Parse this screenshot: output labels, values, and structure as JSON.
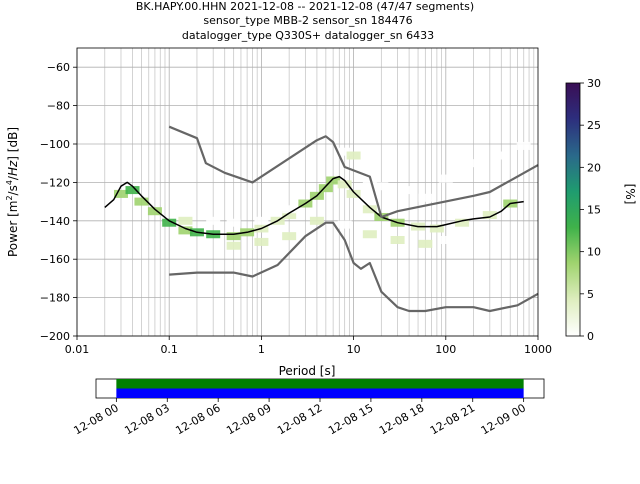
{
  "title_lines": [
    "BK.HAPY.00.HHN   2021-12-08 -- 2021-12-08  (47/47 segments)",
    "sensor_type MBB-2 sensor_sn 184476",
    "datalogger_type Q330S+ datalogger_sn 6433"
  ],
  "chart_data": [
    {
      "type": "heatmap",
      "xlabel": "Period [s]",
      "ylabel": "Power [m2/s4/Hz] [dB]",
      "x_scale": "log",
      "xlim": [
        0.01,
        1000
      ],
      "ylim": [
        -200,
        -50
      ],
      "x_ticks": [
        0.01,
        0.1,
        1,
        10,
        100,
        1000
      ],
      "x_tick_labels": [
        "0.01",
        "0.1",
        "1",
        "10",
        "100",
        "1000"
      ],
      "y_ticks": [
        -200,
        -180,
        -160,
        -140,
        -120,
        -100,
        -80,
        -60
      ],
      "y_tick_labels": [
        "−200",
        "−180",
        "−160",
        "−140",
        "−120",
        "−100",
        "−80",
        "−60"
      ],
      "grid": true,
      "colorbar": {
        "label": "[%]",
        "range": [
          0,
          30
        ],
        "ticks": [
          0,
          5,
          10,
          15,
          20,
          25,
          30
        ],
        "tick_labels": [
          "0",
          "5",
          "10",
          "15",
          "20",
          "25",
          "30"
        ],
        "colors": [
          "#ffffff",
          "#dfeec0",
          "#9fd36e",
          "#3fb24a",
          "#1f9c6f",
          "#2a6a8a",
          "#2d2e7d",
          "#3a0e55"
        ]
      },
      "series": [
        {
          "name": "",
          "color": "#000000",
          "points": [
            [
              0.02,
              -133
            ],
            [
              0.025,
              -129
            ],
            [
              0.03,
              -122
            ],
            [
              0.035,
              -120
            ],
            [
              0.04,
              -122
            ],
            [
              0.05,
              -127
            ],
            [
              0.07,
              -134
            ],
            [
              0.1,
              -140
            ],
            [
              0.15,
              -144
            ],
            [
              0.2,
              -146
            ],
            [
              0.3,
              -147
            ],
            [
              0.5,
              -147
            ],
            [
              0.7,
              -146
            ],
            [
              1,
              -144
            ],
            [
              1.5,
              -140
            ],
            [
              2,
              -136
            ],
            [
              3,
              -131
            ],
            [
              4,
              -127
            ],
            [
              5,
              -122
            ],
            [
              6,
              -118
            ],
            [
              7,
              -117
            ],
            [
              8,
              -119
            ],
            [
              10,
              -125
            ],
            [
              15,
              -133
            ],
            [
              20,
              -138
            ],
            [
              30,
              -141
            ],
            [
              50,
              -143
            ],
            [
              80,
              -143
            ],
            [
              100,
              -142
            ],
            [
              150,
              -140
            ],
            [
              200,
              -139
            ],
            [
              300,
              -138
            ],
            [
              400,
              -135
            ],
            [
              500,
              -131
            ],
            [
              700,
              -130
            ]
          ]
        },
        {
          "name": "",
          "color": "#666666",
          "points": [
            [
              0.1,
              -91
            ],
            [
              0.2,
              -97
            ],
            [
              0.25,
              -110
            ],
            [
              0.4,
              -115
            ],
            [
              0.8,
              -120
            ],
            [
              4,
              -98
            ],
            [
              5,
              -96
            ],
            [
              6,
              -99
            ],
            [
              8,
              -112
            ],
            [
              15,
              -117
            ],
            [
              20,
              -138
            ],
            [
              30,
              -135
            ],
            [
              200,
              -127
            ],
            [
              300,
              -125
            ],
            [
              1000,
              -111
            ]
          ]
        },
        {
          "name": "",
          "color": "#666666",
          "points": [
            [
              0.1,
              -168
            ],
            [
              0.2,
              -167
            ],
            [
              0.5,
              -167
            ],
            [
              0.8,
              -169
            ],
            [
              1.5,
              -163
            ],
            [
              3,
              -148
            ],
            [
              5,
              -141
            ],
            [
              6,
              -141
            ],
            [
              8,
              -150
            ],
            [
              10,
              -162
            ],
            [
              12,
              -165
            ],
            [
              15,
              -162
            ],
            [
              20,
              -177
            ],
            [
              30,
              -185
            ],
            [
              40,
              -187
            ],
            [
              60,
              -187
            ],
            [
              100,
              -185
            ],
            [
              200,
              -185
            ],
            [
              300,
              -187
            ],
            [
              600,
              -184
            ],
            [
              1000,
              -178
            ]
          ]
        }
      ],
      "density": [
        [
          0.03,
          -126,
          8
        ],
        [
          0.04,
          -124,
          12
        ],
        [
          0.05,
          -130,
          10
        ],
        [
          0.07,
          -135,
          8
        ],
        [
          0.1,
          -141,
          12
        ],
        [
          0.15,
          -145,
          10
        ],
        [
          0.2,
          -146,
          14
        ],
        [
          0.3,
          -147,
          11
        ],
        [
          0.5,
          -148,
          9
        ],
        [
          0.7,
          -146,
          8
        ],
        [
          1,
          -144,
          6
        ],
        [
          1.5,
          -140,
          5
        ],
        [
          2,
          -137,
          6
        ],
        [
          3,
          -131,
          8
        ],
        [
          4,
          -127,
          10
        ],
        [
          5,
          -123,
          7
        ],
        [
          6,
          -119,
          9
        ],
        [
          8,
          -121,
          6
        ],
        [
          10,
          -126,
          5
        ],
        [
          15,
          -134,
          6
        ],
        [
          20,
          -138,
          8
        ],
        [
          30,
          -141,
          7
        ],
        [
          50,
          -143,
          6
        ],
        [
          80,
          -144,
          6
        ],
        [
          150,
          -141,
          5
        ],
        [
          300,
          -137,
          4
        ],
        [
          500,
          -131,
          8
        ],
        [
          0.15,
          -140,
          3
        ],
        [
          0.3,
          -140,
          2
        ],
        [
          0.5,
          -141,
          2
        ],
        [
          1,
          -140,
          2
        ],
        [
          2,
          -134,
          2
        ],
        [
          8,
          -104,
          2
        ],
        [
          10,
          -106,
          3
        ],
        [
          15,
          -120,
          2
        ],
        [
          20,
          -122,
          2
        ],
        [
          40,
          -124,
          2
        ],
        [
          60,
          -128,
          2
        ],
        [
          100,
          -118,
          2
        ],
        [
          200,
          -110,
          2
        ],
        [
          400,
          -106,
          2
        ],
        [
          700,
          -101,
          2
        ],
        [
          0.5,
          -153,
          3
        ],
        [
          1,
          -151,
          3
        ],
        [
          2,
          -148,
          3
        ],
        [
          4,
          -140,
          3
        ],
        [
          8,
          -142,
          2
        ],
        [
          15,
          -147,
          3
        ],
        [
          30,
          -150,
          3
        ],
        [
          60,
          -152,
          3
        ],
        [
          100,
          -150,
          2
        ]
      ]
    },
    {
      "type": "timeline",
      "x_tick_labels": [
        "12-08 00",
        "12-08 03",
        "12-08 06",
        "12-08 09",
        "12-08 12",
        "12-08 15",
        "12-08 18",
        "12-08 21",
        "12-09 00"
      ],
      "hours": [
        0,
        3,
        6,
        9,
        12,
        15,
        18,
        21,
        24
      ],
      "xlim_hours": [
        -1.2,
        25.2
      ],
      "bars": [
        {
          "name": "",
          "start_hour": 0,
          "end_hour": 24,
          "color": "#008000"
        },
        {
          "name": "",
          "start_hour": 0,
          "end_hour": 24,
          "color": "#0000ff"
        }
      ]
    }
  ]
}
